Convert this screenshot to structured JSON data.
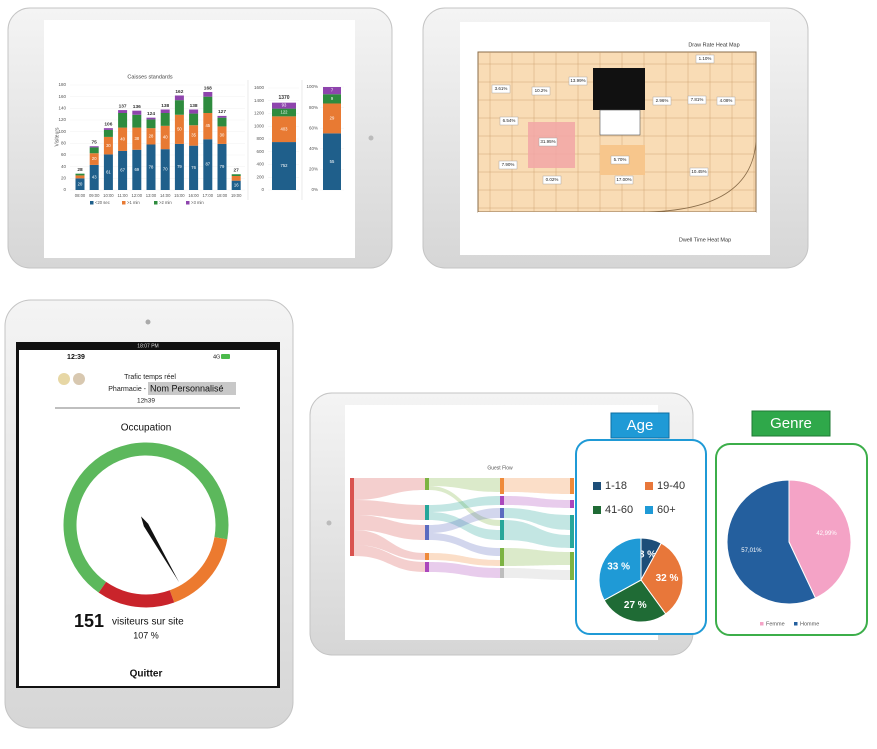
{
  "traffic_chart": {
    "title": "Caisses standards",
    "y_label": "Visiteurs",
    "categories": [
      "08:00",
      "09:00",
      "10:00",
      "11:00",
      "12:00",
      "13:00",
      "14:00",
      "15:00",
      "16:00",
      "17:00",
      "18:00",
      "19:00"
    ],
    "series": [
      {
        "name": "<20 sec",
        "color": "#1f5f8b",
        "values": [
          20,
          43,
          61,
          67,
          69,
          78,
          70,
          79,
          76,
          87,
          79,
          16
        ]
      },
      {
        "name": ">1 min",
        "color": "#e87a33",
        "values": [
          5,
          20,
          30,
          40,
          38,
          28,
          40,
          50,
          35,
          45,
          30,
          8
        ]
      },
      {
        "name": ">2 min",
        "color": "#2e8b3e",
        "values": [
          3,
          10,
          12,
          25,
          22,
          15,
          22,
          25,
          20,
          28,
          15,
          3
        ]
      },
      {
        "name": ">3 min",
        "color": "#8e44ad",
        "values": [
          0,
          2,
          3,
          5,
          7,
          3,
          6,
          8,
          7,
          8,
          3,
          0
        ]
      }
    ],
    "totals": [
      28,
      75,
      106,
      137,
      136,
      124,
      138,
      162,
      138,
      168,
      127,
      27
    ],
    "ylim": [
      0,
      180
    ],
    "yticks": [
      0,
      20,
      40,
      60,
      80,
      100,
      120,
      140,
      160,
      180
    ]
  },
  "total_chart": {
    "values": [
      752,
      403,
      122,
      93
    ],
    "total": 1370,
    "ylim": [
      0,
      1600
    ],
    "yticks": [
      0,
      200,
      400,
      600,
      800,
      1000,
      1200,
      1400,
      1600
    ]
  },
  "share_chart": {
    "values": [
      55,
      29,
      9,
      7
    ],
    "ylim": [
      0,
      100
    ],
    "yticks": [
      {
        "value": 0,
        "label": "0%"
      },
      {
        "value": 20,
        "label": "20%"
      },
      {
        "value": 40,
        "label": "40%"
      },
      {
        "value": 60,
        "label": "60%"
      },
      {
        "value": 80,
        "label": "80%"
      },
      {
        "value": 100,
        "label": "100%"
      }
    ]
  },
  "heat_map": {
    "title": "Draw Rate Heat Map",
    "caption": "Dwell Time Heat Map",
    "zones": [
      "3.61%",
      "10.2%",
      "13.99%",
      "1.10%",
      "6.54%",
      "2.96%",
      "7.81%",
      "4.08%",
      "31.95%",
      "7.90%",
      "0.02%",
      "5.70%",
      "17.00%",
      "10.45%"
    ]
  },
  "phone": {
    "status_time": "18:07 PM",
    "clock": "12:39",
    "network": "4G",
    "header": "Trafic temps réel",
    "site_prefix": "Pharmacie -",
    "site_name": "Nom Personnalisé",
    "time": "12h39",
    "gauge_title": "Occupation",
    "visitors": 151,
    "visitors_label": "visiteurs sur site",
    "occupancy": {
      "value": 107,
      "label": "107 %"
    },
    "button": "Quitter"
  },
  "sankey": {
    "title": "Guest Flow"
  },
  "age_card": {
    "title": "Age",
    "categories": [
      "1-18",
      "19-40",
      "41-60",
      "60+"
    ],
    "colors": [
      "#1d4e79",
      "#e8773a",
      "#1f6b35",
      "#1f9ad6"
    ],
    "values": [
      8,
      32,
      27,
      33
    ],
    "value_labels": [
      "8 %",
      "32 %",
      "27 %",
      "33 %"
    ]
  },
  "genre_card": {
    "title": "Genre",
    "categories": [
      "Femme",
      "Homme"
    ],
    "colors": [
      "#f4a3c6",
      "#245f9e"
    ],
    "values": [
      42.99,
      57.01
    ],
    "value_labels": [
      "42,99%",
      "57,01%"
    ]
  }
}
